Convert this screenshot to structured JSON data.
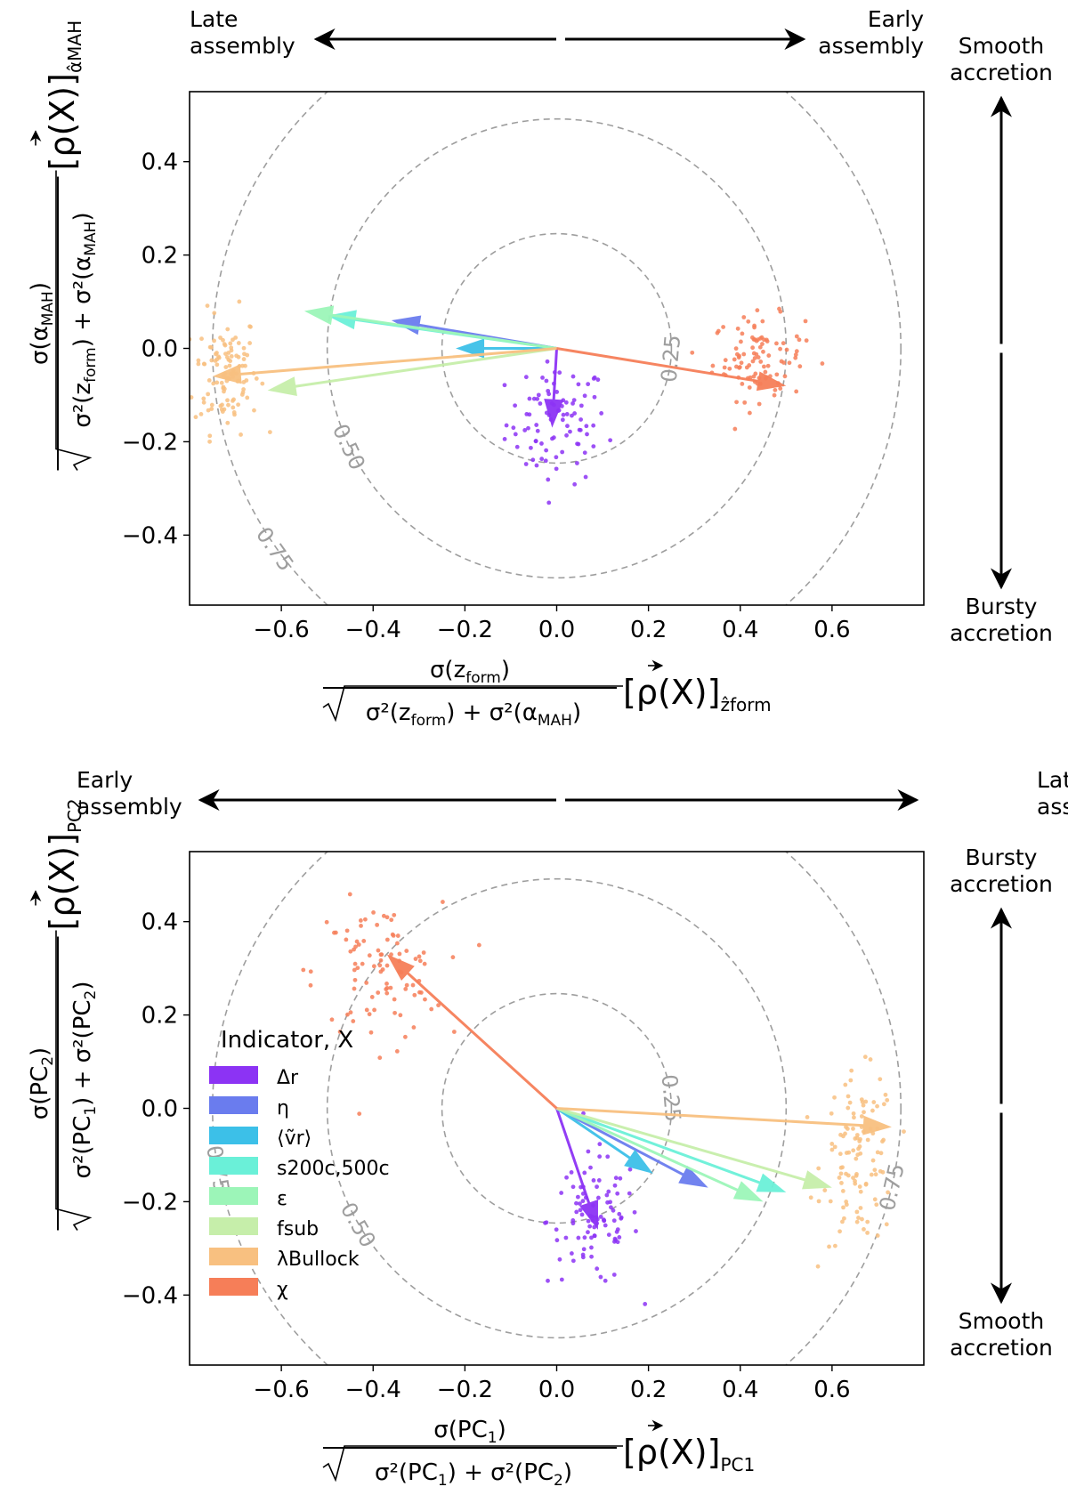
{
  "chart_data": [
    {
      "type": "scatter",
      "xlim": [
        -0.8,
        0.8
      ],
      "ylim": [
        -0.55,
        0.55
      ],
      "xticks": [
        -0.6,
        -0.4,
        -0.2,
        0.0,
        0.2,
        0.4,
        0.6
      ],
      "yticks": [
        -0.4,
        -0.2,
        0.0,
        0.2,
        0.4
      ],
      "xtick_labels": [
        "−0.6",
        "−0.4",
        "−0.2",
        "0.0",
        "0.2",
        "0.4",
        "0.6"
      ],
      "ytick_labels": [
        "−0.4",
        "−0.2",
        "0.0",
        "0.2",
        "0.4"
      ],
      "xlabel": {
        "num_main": "σ(z",
        "num_sub": "form",
        "den_main": "σ²(z",
        "den_sub1": "form",
        "den_mid": ") + σ²(α",
        "den_sub2": "MAH",
        "rho": "[ρ(X)]",
        "proj_sub": "ẑform"
      },
      "ylabel": {
        "num_main": "σ(α",
        "num_sub": "MAH",
        "den_main": "σ²(z",
        "den_sub1": "form",
        "den_mid": ") + σ²(α",
        "den_sub2": "MAH",
        "rho": "[ρ(X)]",
        "proj_sub": "α̂MAH"
      },
      "contours": [
        {
          "r": 0.25,
          "label": "0.25",
          "label_angle_deg": -5
        },
        {
          "r": 0.5,
          "label": "0.50",
          "label_angle_deg": 205
        },
        {
          "r": 0.75,
          "label": "0.75",
          "label_angle_deg": 215
        },
        {
          "r": 0.75,
          "label": "0.75",
          "label_angle_deg": 63
        }
      ],
      "annotations": {
        "top_left": [
          "Late",
          "assembly"
        ],
        "top_right": [
          "Early",
          "assembly"
        ],
        "right_top": [
          "Smooth",
          "accretion"
        ],
        "right_bottom": [
          "Bursty",
          "accretion"
        ]
      },
      "series": [
        {
          "name": "Δr",
          "color": "#8c33f4",
          "vector": [
            -0.01,
            -0.17
          ],
          "cloud": {
            "cx": 0.0,
            "cy": -0.16,
            "sx": 0.055,
            "sy": 0.065,
            "n": 90
          }
        },
        {
          "name": "η",
          "color": "#6a7cee",
          "vector": [
            -0.36,
            0.06
          ],
          "cloud": null
        },
        {
          "name": "⟨ṽr⟩",
          "color": "#3cc0e8",
          "vector": [
            -0.22,
            0.0
          ],
          "cloud": null
        },
        {
          "name": "s200c,500c",
          "color": "#6af0d8",
          "vector": [
            -0.5,
            0.07
          ],
          "cloud": null
        },
        {
          "name": "ε",
          "color": "#9cf5b8",
          "vector": [
            -0.55,
            0.08
          ],
          "cloud": null
        },
        {
          "name": "fsub",
          "color": "#c6eeaa",
          "vector": [
            -0.63,
            -0.09
          ],
          "cloud": null
        },
        {
          "name": "λBullock",
          "color": "#f8c080",
          "vector": [
            -0.75,
            -0.06
          ],
          "cloud": {
            "cx": -0.72,
            "cy": -0.05,
            "sx": 0.035,
            "sy": 0.065,
            "n": 110
          }
        },
        {
          "name": "χ",
          "color": "#f67e58",
          "vector": [
            0.5,
            -0.08
          ],
          "cloud": {
            "cx": 0.44,
            "cy": -0.02,
            "sx": 0.05,
            "sy": 0.045,
            "n": 100
          }
        }
      ]
    },
    {
      "type": "scatter",
      "xlim": [
        -0.8,
        0.8
      ],
      "ylim": [
        -0.55,
        0.55
      ],
      "xticks": [
        -0.6,
        -0.4,
        -0.2,
        0.0,
        0.2,
        0.4,
        0.6
      ],
      "yticks": [
        -0.4,
        -0.2,
        0.0,
        0.2,
        0.4
      ],
      "xtick_labels": [
        "−0.6",
        "−0.4",
        "−0.2",
        "0.0",
        "0.2",
        "0.4",
        "0.6"
      ],
      "ytick_labels": [
        "−0.4",
        "−0.2",
        "0.0",
        "0.2",
        "0.4"
      ],
      "xlabel": {
        "num_main": "σ(PC",
        "num_sub": "1",
        "den_main": "σ²(PC",
        "den_sub1": "1",
        "den_mid": ") + σ²(PC",
        "den_sub2": "2",
        "rho": "[ρ(X)]",
        "proj_sub": "PC1"
      },
      "ylabel": {
        "num_main": "σ(PC",
        "num_sub": "2",
        "den_main": "σ²(PC",
        "den_sub1": "1",
        "den_mid": ") + σ²(PC",
        "den_sub2": "2",
        "rho": "[ρ(X)]",
        "proj_sub": "PC2"
      },
      "contours": [
        {
          "r": 0.25,
          "label": "0.25",
          "label_angle_deg": 5
        },
        {
          "r": 0.5,
          "label": "0.50",
          "label_angle_deg": 210
        },
        {
          "r": 0.75,
          "label": "0.75",
          "label_angle_deg": 190
        },
        {
          "r": 0.75,
          "label": "0.75",
          "label_angle_deg": -13
        }
      ],
      "annotations": {
        "top_left": [
          "Early",
          "assembly"
        ],
        "top_right": [
          "Late",
          "assembly"
        ],
        "right_top": [
          "Bursty",
          "accretion"
        ],
        "right_bottom": [
          "Smooth",
          "accretion"
        ]
      },
      "legend": {
        "title": "Indicator, X",
        "position": "lower-left"
      },
      "series": [
        {
          "name": "Δr",
          "color": "#8c33f4",
          "vector": [
            0.09,
            -0.26
          ],
          "cloud": {
            "cx": 0.08,
            "cy": -0.24,
            "sx": 0.05,
            "sy": 0.07,
            "n": 95
          }
        },
        {
          "name": "η",
          "color": "#6a7cee",
          "vector": [
            0.33,
            -0.17
          ],
          "cloud": null
        },
        {
          "name": "⟨ṽr⟩",
          "color": "#3cc0e8",
          "vector": [
            0.21,
            -0.14
          ],
          "cloud": null
        },
        {
          "name": "s200c,500c",
          "color": "#6af0d8",
          "vector": [
            0.5,
            -0.18
          ],
          "cloud": null
        },
        {
          "name": "ε",
          "color": "#9cf5b8",
          "vector": [
            0.45,
            -0.2
          ],
          "cloud": null
        },
        {
          "name": "fsub",
          "color": "#c6eeaa",
          "vector": [
            0.6,
            -0.17
          ],
          "cloud": null
        },
        {
          "name": "λBullock",
          "color": "#f8c080",
          "vector": [
            0.73,
            -0.04
          ],
          "cloud": {
            "cx": 0.66,
            "cy": -0.11,
            "sx": 0.04,
            "sy": 0.09,
            "n": 110
          }
        },
        {
          "name": "χ",
          "color": "#f67e58",
          "vector": [
            -0.37,
            0.33
          ],
          "cloud": {
            "cx": -0.39,
            "cy": 0.29,
            "sx": 0.07,
            "sy": 0.075,
            "n": 95
          }
        }
      ]
    }
  ]
}
